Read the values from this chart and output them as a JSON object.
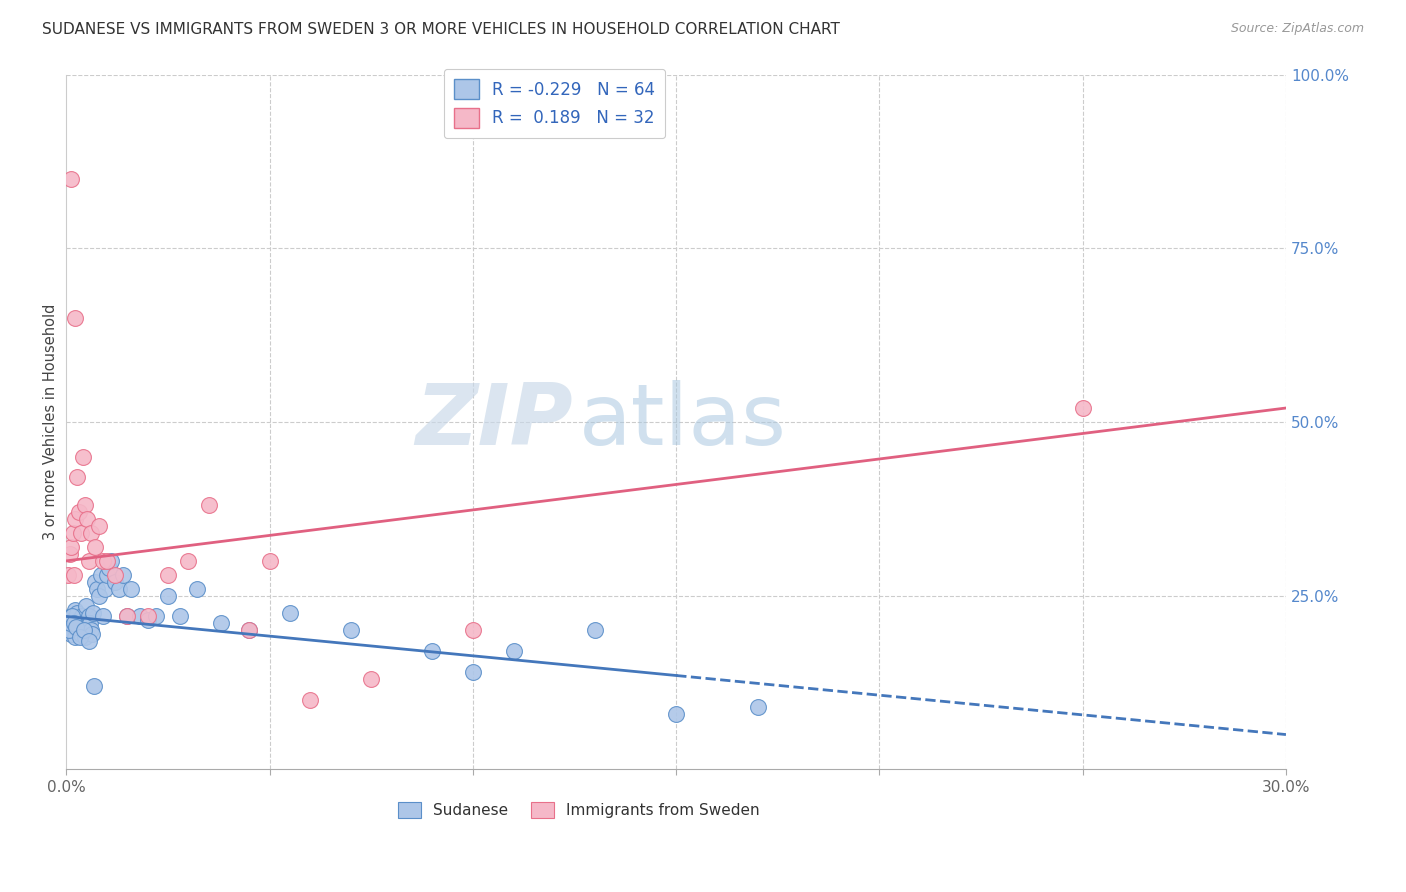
{
  "title": "SUDANESE VS IMMIGRANTS FROM SWEDEN 3 OR MORE VEHICLES IN HOUSEHOLD CORRELATION CHART",
  "source": "Source: ZipAtlas.com",
  "ylabel": "3 or more Vehicles in Household",
  "legend_label1": "Sudanese",
  "legend_label2": "Immigrants from Sweden",
  "R1": -0.229,
  "N1": 64,
  "R2": 0.189,
  "N2": 32,
  "color_blue": "#adc6e8",
  "color_pink": "#f5b8c8",
  "color_blue_edge": "#5b8fc9",
  "color_pink_edge": "#e8708a",
  "color_blue_line": "#4477bb",
  "color_pink_line": "#e06080",
  "watermark_zip": "ZIP",
  "watermark_atlas": "atlas",
  "xmin": 0.0,
  "xmax": 30.0,
  "ymin": 0.0,
  "ymax": 100.0,
  "blue_line_x0": 0.0,
  "blue_line_y0": 22.0,
  "blue_line_x1": 30.0,
  "blue_line_y1": 5.0,
  "blue_solid_end_x": 15.0,
  "pink_line_x0": 0.0,
  "pink_line_y0": 30.0,
  "pink_line_x1": 30.0,
  "pink_line_y1": 52.0,
  "blue_dots_x": [
    0.05,
    0.08,
    0.1,
    0.12,
    0.15,
    0.18,
    0.2,
    0.22,
    0.25,
    0.28,
    0.3,
    0.32,
    0.35,
    0.38,
    0.4,
    0.42,
    0.45,
    0.48,
    0.5,
    0.52,
    0.55,
    0.58,
    0.6,
    0.62,
    0.65,
    0.7,
    0.75,
    0.8,
    0.85,
    0.9,
    0.95,
    1.0,
    1.05,
    1.1,
    1.2,
    1.3,
    1.4,
    1.5,
    1.6,
    1.8,
    2.0,
    2.2,
    2.5,
    2.8,
    3.2,
    3.8,
    4.5,
    5.5,
    7.0,
    9.0,
    10.0,
    11.0,
    13.0,
    15.0,
    17.0,
    0.06,
    0.09,
    0.14,
    0.19,
    0.23,
    0.33,
    0.44,
    0.55,
    0.68
  ],
  "blue_dots_y": [
    21.0,
    20.0,
    19.5,
    22.0,
    21.5,
    20.5,
    23.0,
    19.0,
    22.5,
    21.0,
    20.0,
    21.5,
    19.5,
    22.0,
    21.0,
    20.0,
    19.0,
    23.5,
    21.0,
    20.5,
    22.0,
    21.0,
    20.0,
    19.5,
    22.5,
    27.0,
    26.0,
    25.0,
    28.0,
    22.0,
    26.0,
    28.0,
    29.0,
    30.0,
    27.0,
    26.0,
    28.0,
    22.0,
    26.0,
    22.0,
    21.5,
    22.0,
    25.0,
    22.0,
    26.0,
    21.0,
    20.0,
    22.5,
    20.0,
    17.0,
    14.0,
    17.0,
    20.0,
    8.0,
    9.0,
    20.0,
    21.0,
    22.0,
    21.0,
    20.5,
    19.0,
    20.0,
    18.5,
    12.0
  ],
  "pink_dots_x": [
    0.05,
    0.08,
    0.1,
    0.15,
    0.18,
    0.2,
    0.25,
    0.3,
    0.35,
    0.4,
    0.45,
    0.5,
    0.55,
    0.6,
    0.7,
    0.8,
    0.9,
    1.0,
    1.2,
    1.5,
    2.0,
    2.5,
    3.0,
    3.5,
    4.5,
    5.0,
    6.0,
    7.5,
    10.0,
    25.0,
    0.12,
    0.22
  ],
  "pink_dots_y": [
    28.0,
    31.0,
    32.0,
    34.0,
    28.0,
    36.0,
    42.0,
    37.0,
    34.0,
    45.0,
    38.0,
    36.0,
    30.0,
    34.0,
    32.0,
    35.0,
    30.0,
    30.0,
    28.0,
    22.0,
    22.0,
    28.0,
    30.0,
    38.0,
    20.0,
    30.0,
    10.0,
    13.0,
    20.0,
    52.0,
    85.0,
    65.0
  ]
}
